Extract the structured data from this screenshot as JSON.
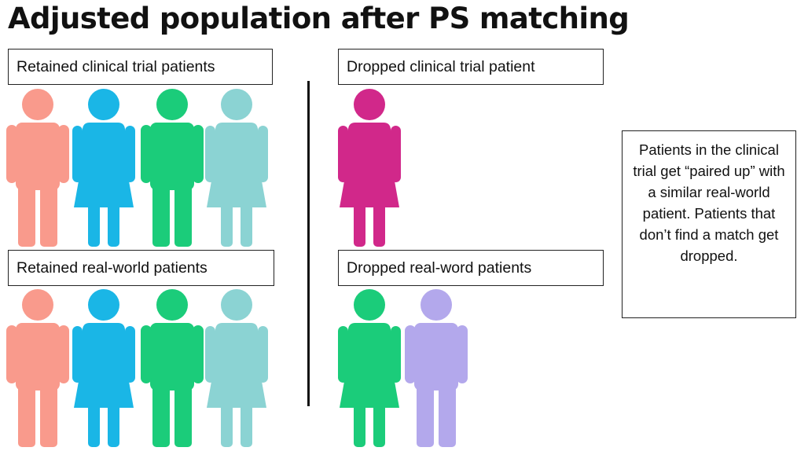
{
  "title": "Adjusted population after PS matching",
  "labels": {
    "retained_trial": "Retained clinical trial patients",
    "dropped_trial": "Dropped clinical trial patient",
    "retained_real": "Retained real-world patients",
    "dropped_real": "Dropped real-word patients"
  },
  "info": "Patients in the clinical trial get “paired up” with a similar real-world patient. Patients that don’t find a match get dropped.",
  "colors": {
    "salmon": "#F99A8C",
    "blue": "#1AB6E6",
    "green": "#1BCC7A",
    "teal": "#8BD3D3",
    "magenta": "#D1288A",
    "lavender": "#B3A8EC"
  },
  "groups": {
    "retained_trial": [
      {
        "type": "male-figure-icon",
        "color": "salmon"
      },
      {
        "type": "female-figure-icon",
        "color": "blue"
      },
      {
        "type": "male-figure-icon",
        "color": "green"
      },
      {
        "type": "female-figure-icon",
        "color": "teal"
      }
    ],
    "dropped_trial": [
      {
        "type": "female-figure-icon",
        "color": "magenta"
      }
    ],
    "retained_real": [
      {
        "type": "male-figure-icon",
        "color": "salmon"
      },
      {
        "type": "female-figure-icon",
        "color": "blue"
      },
      {
        "type": "male-figure-icon",
        "color": "green"
      },
      {
        "type": "female-figure-icon",
        "color": "teal"
      }
    ],
    "dropped_real": [
      {
        "type": "female-figure-icon",
        "color": "green"
      },
      {
        "type": "male-figure-icon",
        "color": "lavender"
      }
    ]
  }
}
